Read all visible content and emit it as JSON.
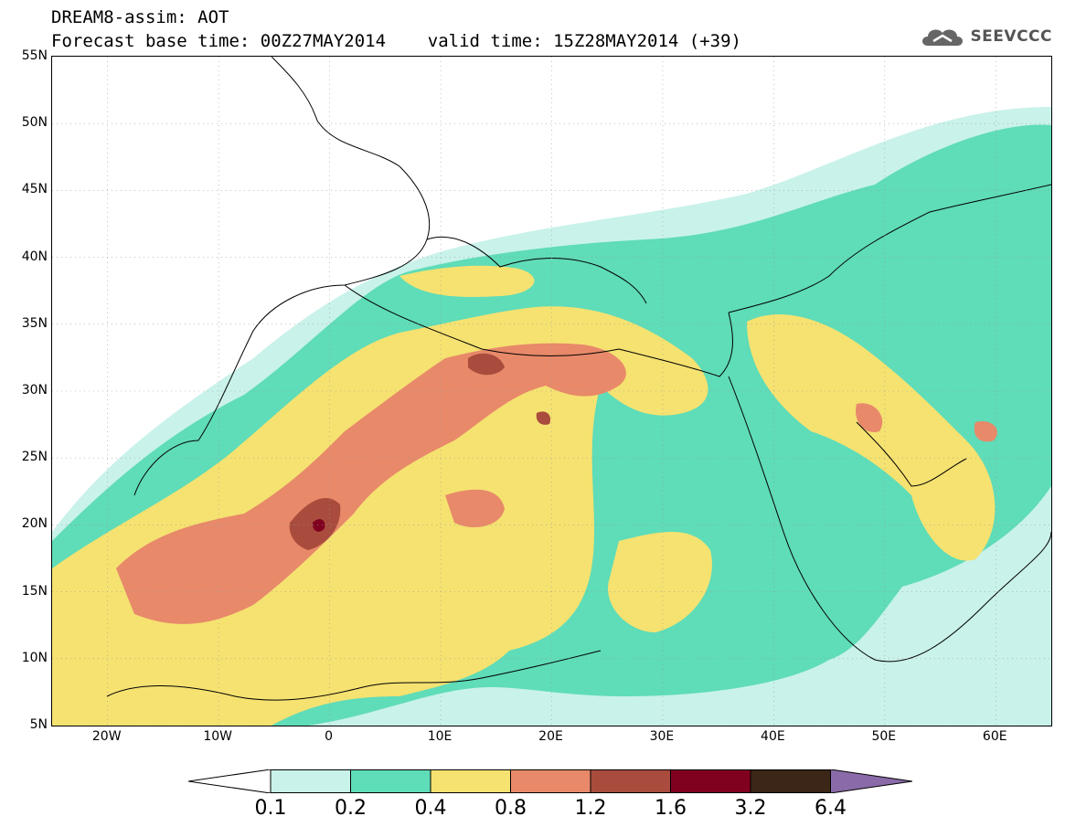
{
  "title": {
    "line1": "DREAM8-assim: AOT",
    "line2": "Forecast base time: 00Z27MAY2014    valid time: 15Z28MAY2014 (+39)"
  },
  "brand": {
    "name": "SEEVCCC",
    "icon": "cloud-icon"
  },
  "map": {
    "lon_range": [
      -25,
      65
    ],
    "lat_range": [
      5,
      55
    ],
    "lat_labels": [
      "55N",
      "50N",
      "45N",
      "40N",
      "35N",
      "30N",
      "25N",
      "20N",
      "15N",
      "10N",
      "5N"
    ],
    "lat_values": [
      55,
      50,
      45,
      40,
      35,
      30,
      25,
      20,
      15,
      10,
      5
    ],
    "lon_labels": [
      "20W",
      "10W",
      "0",
      "10E",
      "20E",
      "30E",
      "40E",
      "50E",
      "60E"
    ],
    "lon_values": [
      -20,
      -10,
      0,
      10,
      20,
      30,
      40,
      50,
      60
    ]
  },
  "legend": {
    "levels": [
      "0.1",
      "0.2",
      "0.4",
      "0.8",
      "1.2",
      "1.6",
      "3.2",
      "6.4"
    ],
    "colors": [
      "#c9f2ea",
      "#5fdcb8",
      "#f5e271",
      "#e8896a",
      "#a94c3d",
      "#800020",
      "#3b2617",
      "#8a6aa8"
    ],
    "under_color": "#ffffff"
  }
}
